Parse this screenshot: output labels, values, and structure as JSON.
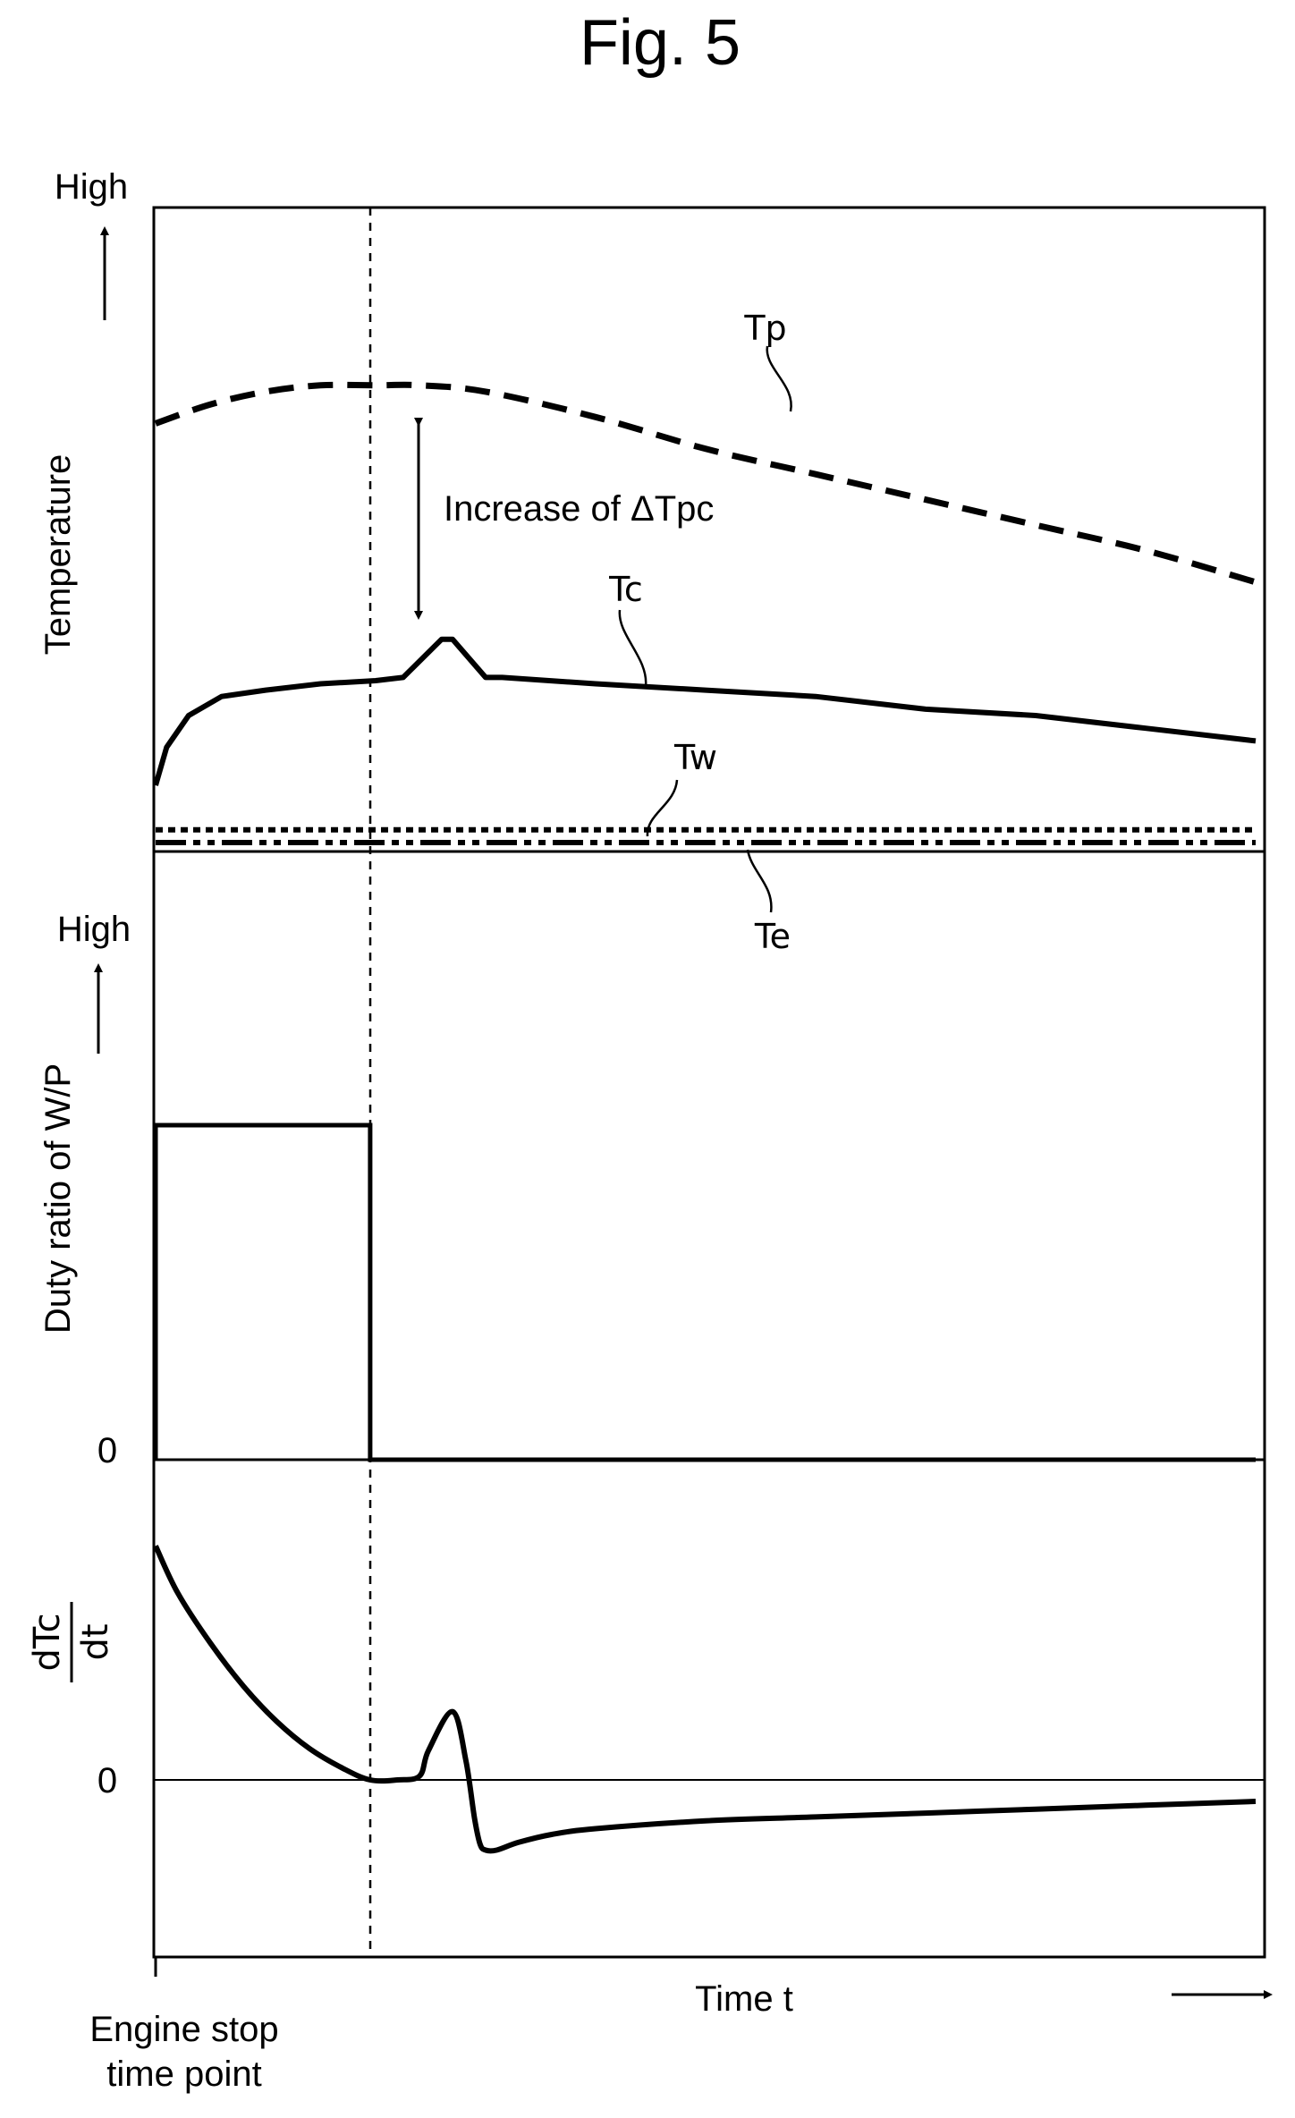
{
  "figure_title": "Fig. 5",
  "x_axis": {
    "label": "Time t",
    "origin_label_line1": "Engine stop",
    "origin_label_line2": "time point"
  },
  "chart_data": [
    {
      "type": "line",
      "panel": "temperature",
      "ylabel": "Temperature",
      "y_high_label": "High",
      "annotation": "Increase of ΔTpc",
      "xlim": [
        0,
        1
      ],
      "ylim": [
        0,
        1
      ],
      "grid": false,
      "series": [
        {
          "name": "Tp",
          "style": "dashed",
          "x": [
            0,
            0.05,
            0.1,
            0.15,
            0.2,
            0.24,
            0.3,
            0.4,
            0.5,
            0.6,
            0.7,
            0.8,
            0.9,
            1.0
          ],
          "y": [
            0.66,
            0.69,
            0.71,
            0.72,
            0.72,
            0.72,
            0.71,
            0.67,
            0.62,
            0.58,
            0.54,
            0.5,
            0.46,
            0.41
          ]
        },
        {
          "name": "Tc",
          "style": "solid",
          "x": [
            0,
            0.01,
            0.03,
            0.06,
            0.1,
            0.15,
            0.2,
            0.225,
            0.26,
            0.27,
            0.3,
            0.315,
            0.4,
            0.5,
            0.6,
            0.7,
            0.8,
            0.9,
            1.0
          ],
          "y": [
            0.09,
            0.15,
            0.2,
            0.23,
            0.24,
            0.25,
            0.255,
            0.26,
            0.32,
            0.32,
            0.26,
            0.26,
            0.25,
            0.24,
            0.23,
            0.21,
            0.2,
            0.18,
            0.16
          ]
        },
        {
          "name": "Tw",
          "style": "dotted",
          "x": [
            0,
            1
          ],
          "y": [
            0.02,
            0.02
          ]
        },
        {
          "name": "Te",
          "style": "dash-dot-dot",
          "x": [
            0,
            1
          ],
          "y": [
            0.0,
            0.0
          ]
        }
      ]
    },
    {
      "type": "line",
      "panel": "duty_ratio",
      "ylabel": "Duty ratio of W/P",
      "y_high_label": "High",
      "y_zero_label": "0",
      "xlim": [
        0,
        1
      ],
      "ylim": [
        0,
        1
      ],
      "grid": false,
      "series": [
        {
          "name": "",
          "style": "solid",
          "x": [
            0,
            0,
            0.195,
            0.195,
            1.0
          ],
          "y": [
            0,
            0.55,
            0.55,
            0,
            0
          ]
        }
      ]
    },
    {
      "type": "line",
      "panel": "dTc_dt",
      "ylabel_numerator": "dTc",
      "ylabel_denominator": "dt",
      "y_zero_label": "0",
      "xlim": [
        0,
        1
      ],
      "ylim": [
        -1,
        1.4
      ],
      "grid": false,
      "series": [
        {
          "name": "",
          "style": "solid",
          "x": [
            0,
            0.02,
            0.05,
            0.08,
            0.11,
            0.14,
            0.17,
            0.195,
            0.22,
            0.24,
            0.248,
            0.27,
            0.282,
            0.29,
            0.295,
            0.3,
            0.31,
            0.33,
            0.36,
            0.4,
            0.5,
            0.6,
            0.7,
            0.8,
            0.9,
            1.0
          ],
          "y": [
            1.2,
            0.96,
            0.7,
            0.48,
            0.3,
            0.16,
            0.06,
            0.0,
            0.0,
            0.02,
            0.15,
            0.35,
            0.1,
            -0.2,
            -0.33,
            -0.36,
            -0.36,
            -0.32,
            -0.28,
            -0.25,
            -0.21,
            -0.19,
            -0.17,
            -0.15,
            -0.13,
            -0.11
          ]
        }
      ]
    }
  ]
}
